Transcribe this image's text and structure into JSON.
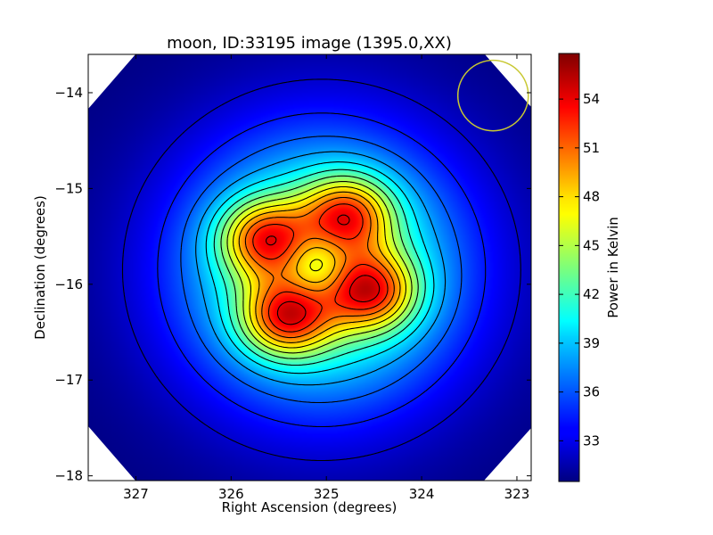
{
  "chart_data": {
    "type": "heatmap",
    "title": "moon, ID:33195 image (1395.0,XX)",
    "xlabel": "Right Ascension (degrees)",
    "ylabel": "Declination (degrees)",
    "xlim": [
      327.5,
      322.85
    ],
    "ylim": [
      -18.05,
      -13.6
    ],
    "x_ticks": [
      327,
      326,
      325,
      324,
      323
    ],
    "y_ticks": [
      -14,
      -15,
      -16,
      -17,
      -18
    ],
    "colorbar": {
      "label": "Power in Kelvin",
      "range": [
        30.5,
        56.8
      ],
      "ticks": [
        33,
        36,
        39,
        42,
        45,
        48,
        51,
        54
      ],
      "colormap": "jet"
    },
    "background_level": 30.5,
    "peaks": [
      {
        "ra": 325.65,
        "dec": -15.52,
        "value": 56.0
      },
      {
        "ra": 324.78,
        "dec": -15.27,
        "value": 55.8
      },
      {
        "ra": 324.53,
        "dec": -16.07,
        "value": 56.3
      },
      {
        "ra": 325.42,
        "dec": -16.35,
        "value": 56.6
      }
    ],
    "central_dip": {
      "ra": 325.1,
      "dec": -15.8,
      "value": 45.0
    },
    "beam_circle": {
      "ra": 323.25,
      "dec": -14.03,
      "radius_deg": 0.37,
      "color": "#c8c832"
    },
    "contour_color": "#000000"
  }
}
